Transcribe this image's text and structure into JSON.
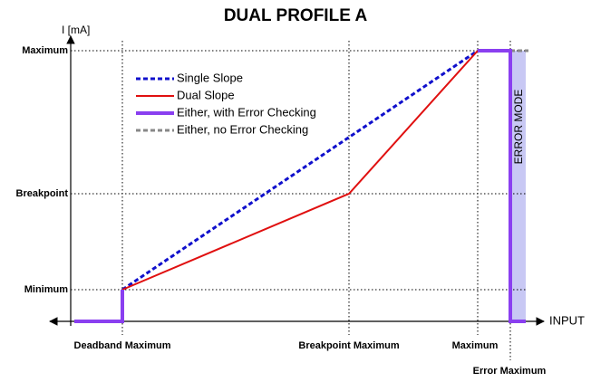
{
  "title": "DUAL PROFILE A",
  "y_axis_label": "I [mA]",
  "x_axis_label": "INPUT",
  "y_levels": [
    "Maximum",
    "Breakpoint",
    "Minimum"
  ],
  "x_levels": [
    "Deadband Maximum",
    "Breakpoint Maximum",
    "Maximum",
    "Error Maximum"
  ],
  "legend": [
    "Single Slope",
    "Dual Slope",
    "Either, with Error Checking",
    "Either, no Error Checking"
  ],
  "annotation": "ERROR MODE"
}
